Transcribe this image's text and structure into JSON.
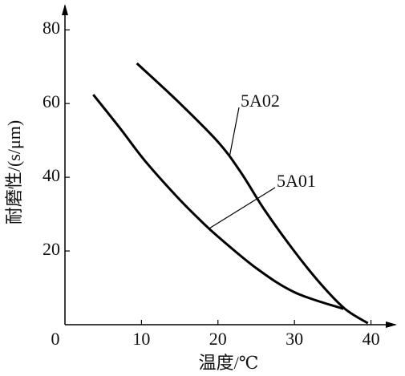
{
  "chart_data": {
    "type": "line",
    "x_label": "温度/℃",
    "y_label": "耐磨性/(s/μm)",
    "xlim": [
      0,
      43.4
    ],
    "ylim": [
      0,
      87
    ],
    "xticks": [
      0,
      10,
      20,
      30,
      40
    ],
    "yticks": [
      20,
      40,
      60,
      80
    ],
    "series": [
      {
        "name": "5A02",
        "color": "#000000",
        "x": [
          9.4,
          14.6,
          20,
          23,
          26.1,
          30.1,
          33.5,
          36.6,
          39.6
        ],
        "values": [
          70.9,
          60.9,
          49.6,
          41.3,
          31.1,
          19.6,
          10.9,
          4.3,
          0.4
        ]
      },
      {
        "name": "5A01",
        "color": "#000000",
        "x": [
          3.7,
          7.2,
          10.4,
          14.6,
          17.7,
          20,
          25.1,
          30.1,
          36.4
        ],
        "values": [
          62.4,
          53.3,
          44.6,
          34.8,
          28.3,
          23.9,
          15.2,
          8.7,
          4.3
        ]
      }
    ]
  }
}
